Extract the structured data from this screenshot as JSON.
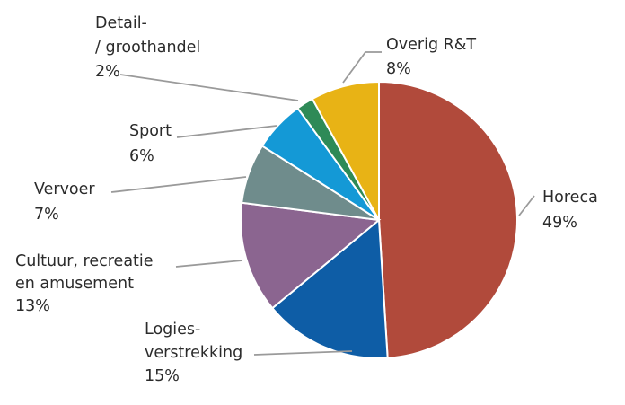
{
  "chart_data": {
    "type": "pie",
    "title": "",
    "start_angle_deg": 0,
    "direction": "clockwise",
    "slices": [
      {
        "key": "horeca",
        "lines": [
          "Horeca"
        ],
        "value": 49,
        "label": "49%",
        "color": "#b14a3b"
      },
      {
        "key": "logies",
        "lines": [
          "Logies-",
          "verstrekking"
        ],
        "value": 15,
        "label": "15%",
        "color": "#0e5da6"
      },
      {
        "key": "cultuur",
        "lines": [
          "Cultuur, recreatie",
          "en amusement"
        ],
        "value": 13,
        "label": "13%",
        "color": "#8b6590"
      },
      {
        "key": "vervoer",
        "lines": [
          "Vervoer"
        ],
        "value": 7,
        "label": "7%",
        "color": "#6f8c8c"
      },
      {
        "key": "sport",
        "lines": [
          "Sport"
        ],
        "value": 6,
        "label": "6%",
        "color": "#1499d6"
      },
      {
        "key": "detail",
        "lines": [
          "Detail-",
          "/ groothandel"
        ],
        "value": 2,
        "label": "2%",
        "color": "#2e8a57"
      },
      {
        "key": "overig",
        "lines": [
          "Overig R&T"
        ],
        "value": 8,
        "label": "8%",
        "color": "#e8b315"
      }
    ]
  }
}
